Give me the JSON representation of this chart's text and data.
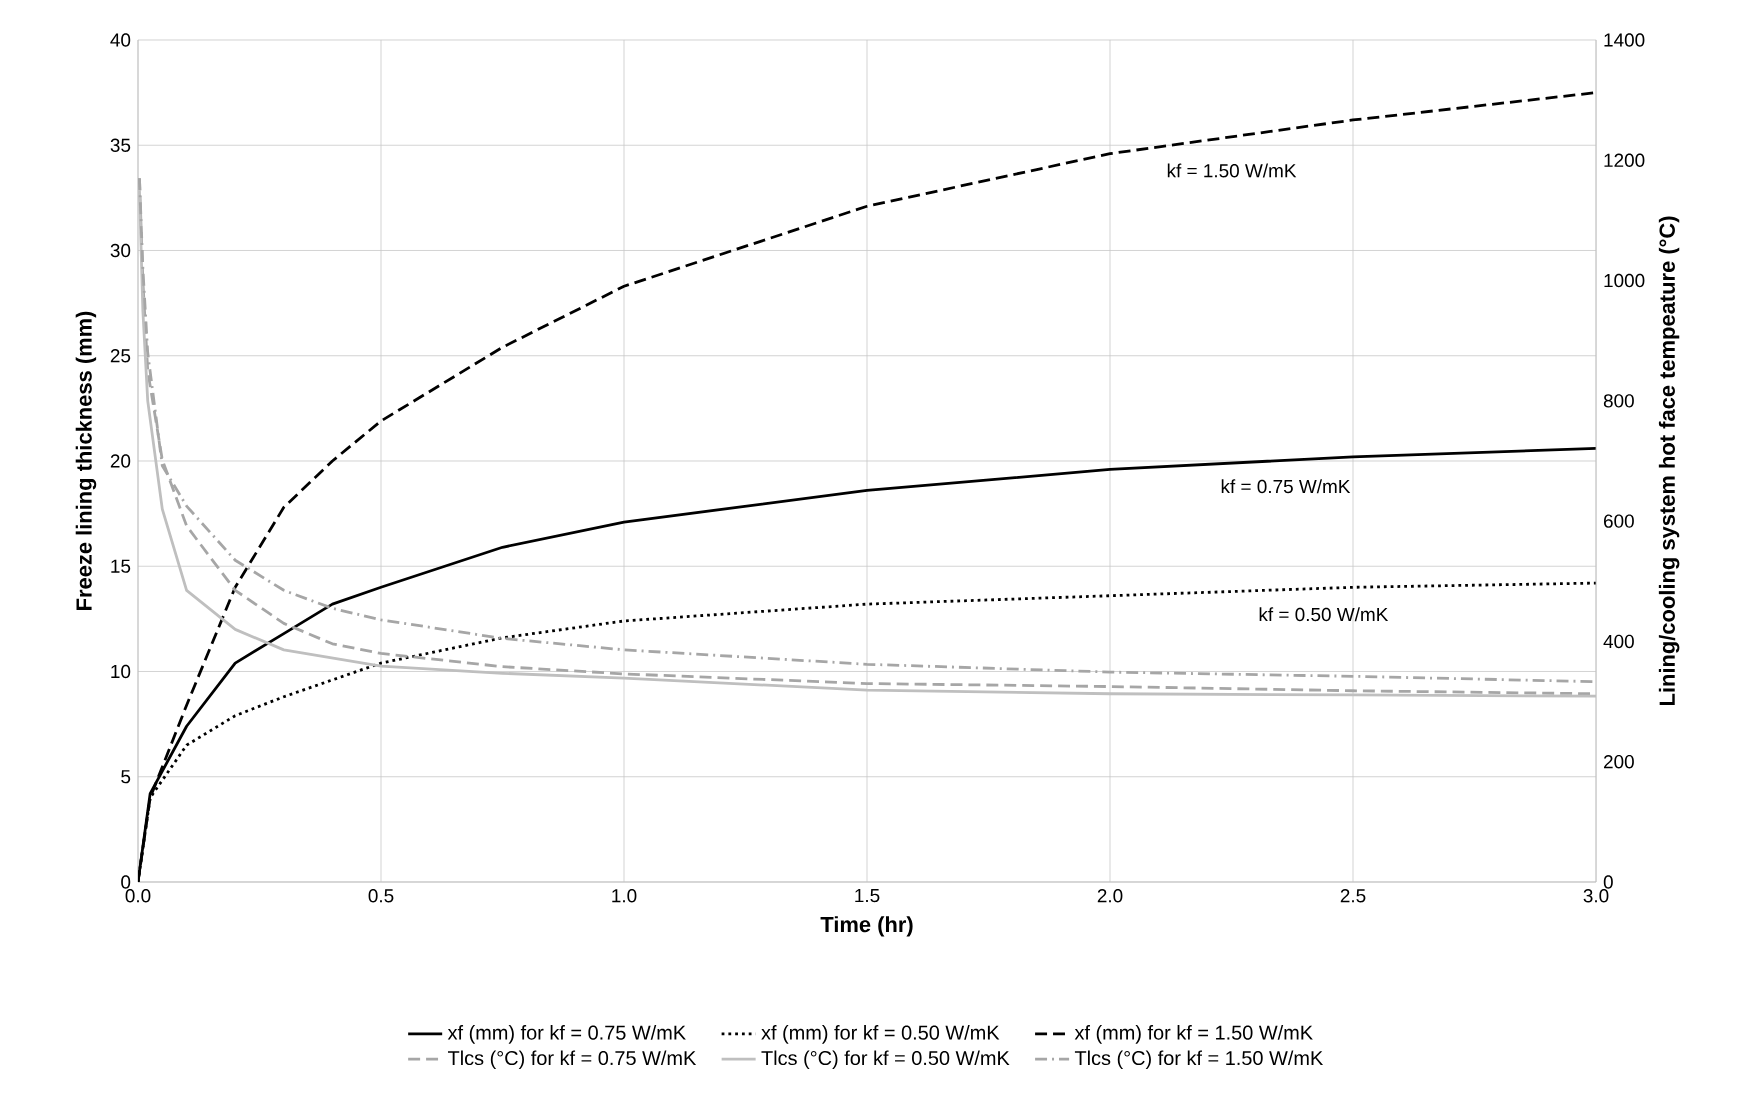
{
  "chart_data": {
    "type": "line",
    "xlabel": "Time (hr)",
    "ylabel": "Freeze lining thickness (mm)",
    "y2label": "Lining/cooling  system hot face tempeature (°C)",
    "xlim": [
      0,
      3
    ],
    "ylim": [
      0,
      40
    ],
    "y2lim": [
      0,
      1400
    ],
    "xticks": [
      {
        "value": 0,
        "label": "0.0"
      },
      0.5,
      {
        "value": 1,
        "label": "1.0"
      },
      1.5,
      {
        "value": 2,
        "label": "2.0"
      },
      2.5,
      {
        "value": 3,
        "label": "3.0"
      }
    ],
    "yticks": [
      0,
      5,
      10,
      15,
      20,
      25,
      30,
      35,
      40
    ],
    "y2ticks": [
      0,
      200,
      400,
      600,
      800,
      1000,
      1200,
      1400
    ],
    "grid": true,
    "legend": "bottom",
    "marker": "none",
    "annotations": [
      "kf = 1.50 W/mK",
      "kf = 0.75 W/mK",
      "kf = 0.50 W/mK"
    ],
    "series": [
      {
        "name": "xf (mm) for kf = 0.75 W/mK",
        "color": "#000000",
        "line_style": "solid",
        "x": [
          0,
          0.025,
          0.1,
          0.2,
          0.3,
          0.4,
          0.5,
          0.75,
          1.0,
          1.5,
          2.0,
          2.5,
          3.0
        ],
        "values": [
          0,
          4.2,
          7.4,
          10.4,
          11.8,
          13.2,
          14.0,
          15.9,
          17.1,
          18.6,
          19.6,
          20.2,
          20.6
        ]
      },
      {
        "name": "xf (mm) for kf = 0.50 W/mK",
        "color": "#000000",
        "line_style": "dotted",
        "x": [
          0,
          0.025,
          0.1,
          0.2,
          0.3,
          0.4,
          0.5,
          0.75,
          1.0,
          1.5,
          2.0,
          2.5,
          3.0
        ],
        "values": [
          0,
          4.0,
          6.5,
          7.9,
          8.8,
          9.6,
          10.4,
          11.6,
          12.4,
          13.2,
          13.6,
          14.0,
          14.2
        ]
      },
      {
        "name": "xf (mm) for kf = 1.50 W/mK",
        "color": "#000000",
        "line_style": "dashed",
        "x": [
          0,
          0.025,
          0.1,
          0.2,
          0.3,
          0.4,
          0.5,
          0.75,
          1.0,
          1.5,
          2.0,
          2.5,
          3.0
        ],
        "values": [
          0,
          4.0,
          8.4,
          14.0,
          17.8,
          20.0,
          21.9,
          25.4,
          28.3,
          32.1,
          34.6,
          36.2,
          37.5
        ]
      },
      {
        "name": "Tlcs (°C) for kf =  0.75 W/mK",
        "color": "#a6a6a6",
        "line_style": "dashed",
        "axis": "y2",
        "x": [
          0.003,
          0.01,
          0.02,
          0.05,
          0.1,
          0.2,
          0.3,
          0.4,
          0.5,
          0.75,
          1.0,
          1.5,
          2.0,
          2.5,
          3.0
        ],
        "values": [
          1170,
          1000,
          850,
          702,
          592,
          485,
          430,
          396,
          380,
          358,
          346,
          330,
          325,
          318,
          313
        ]
      },
      {
        "name": "Tlcs (°C) for kf =  0.50 W/mK",
        "color": "#bfbfbf",
        "line_style": "solid",
        "axis": "y2",
        "x": [
          0.003,
          0.01,
          0.02,
          0.05,
          0.1,
          0.2,
          0.3,
          0.5,
          0.75,
          1.0,
          1.5,
          2.0,
          2.5,
          3.0
        ],
        "values": [
          1150,
          950,
          800,
          620,
          485,
          420,
          386,
          359,
          347,
          339,
          319,
          313,
          311,
          309
        ]
      },
      {
        "name": "Tlcs (°C) for kf =  1.50 W/mK",
        "color": "#a6a6a6",
        "line_style": "dashdot",
        "axis": "y2",
        "x": [
          0.003,
          0.01,
          0.02,
          0.05,
          0.1,
          0.2,
          0.3,
          0.4,
          0.5,
          0.75,
          1.0,
          1.5,
          2.0,
          2.5,
          3.0
        ],
        "values": [
          1170,
          1020,
          880,
          692,
          625,
          535,
          485,
          455,
          436,
          405,
          386,
          362,
          349,
          342,
          333
        ]
      }
    ]
  }
}
